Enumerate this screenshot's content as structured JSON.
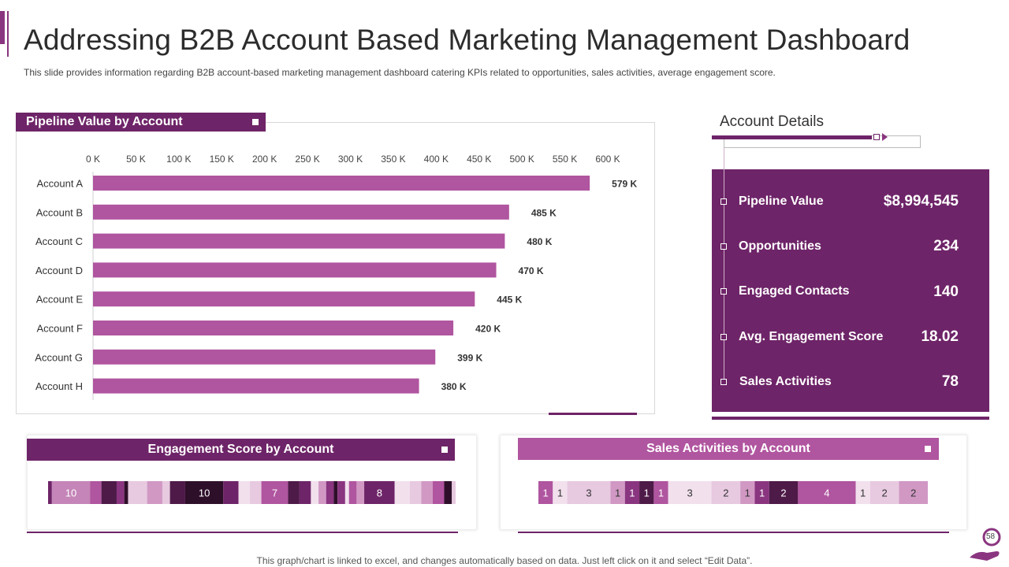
{
  "header": {
    "title": "Addressing B2B Account Based Marketing Management Dashboard",
    "subtitle": "This slide provides  information  regarding  B2B account-based  marketing  management  dashboard  catering  KPIs related  to opportunities,  sales activities,  average   engagement  score."
  },
  "colors": {
    "accent": "#6e2468",
    "bar": "#b0559f",
    "panel": "#6e2468"
  },
  "pipeline_chart": {
    "header": "Pipeline Value by Account"
  },
  "chart_data": [
    {
      "type": "bar",
      "orientation": "horizontal",
      "title": "Pipeline Value by Account",
      "categories": [
        "Account  A",
        "Account  B",
        "Account  C",
        "Account  D",
        "Account  E",
        "Account  F",
        "Account  G",
        "Account  H"
      ],
      "values": [
        579,
        485,
        480,
        470,
        445,
        420,
        399,
        380
      ],
      "value_labels": [
        "579  K",
        "485  K",
        "480  K",
        "470  K",
        "445  K",
        "420  K",
        "399  K",
        "380  K"
      ],
      "ticks": [
        0,
        50,
        100,
        150,
        200,
        250,
        300,
        350,
        400,
        450,
        500,
        550,
        600
      ],
      "tick_labels": [
        "0 K",
        "50 K",
        "100 K",
        "150 K",
        "200 K",
        "250 K",
        "300 K",
        "350 K",
        "400 K",
        "450 K",
        "500 K",
        "550 K",
        "600 K"
      ],
      "xlim": [
        0,
        600
      ],
      "unit": "K",
      "legend": "none"
    },
    {
      "type": "bar",
      "orientation": "stacked-horizontal",
      "title": "Engagement Score by Account",
      "segments": [
        {
          "value": 1,
          "color": "#6e2468",
          "label": ""
        },
        {
          "value": 10,
          "color": "#c585b8",
          "label": "10"
        },
        {
          "value": 3,
          "color": "#b0559f",
          "label": ""
        },
        {
          "value": 4,
          "color": "#4e1a48",
          "label": ""
        },
        {
          "value": 2,
          "color": "#8a3580",
          "label": ""
        },
        {
          "value": 1,
          "color": "#2e0f2a",
          "label": ""
        },
        {
          "value": 5,
          "color": "#e7c9e0",
          "label": ""
        },
        {
          "value": 4,
          "color": "#d198c4",
          "label": ""
        },
        {
          "value": 2,
          "color": "#e7c9e0",
          "label": ""
        },
        {
          "value": 4,
          "color": "#4e1a48",
          "label": ""
        },
        {
          "value": 10,
          "color": "#2e0f2a",
          "label": "10"
        },
        {
          "value": 4,
          "color": "#6e2468",
          "label": ""
        },
        {
          "value": 3,
          "color": "#f2e0ed",
          "label": ""
        },
        {
          "value": 3,
          "color": "#e7c9e0",
          "label": ""
        },
        {
          "value": 7,
          "color": "#b0559f",
          "label": "7"
        },
        {
          "value": 3,
          "color": "#4e1a48",
          "label": ""
        },
        {
          "value": 3,
          "color": "#6e2468",
          "label": ""
        },
        {
          "value": 2,
          "color": "#f2e0ed",
          "label": ""
        },
        {
          "value": 2,
          "color": "#d198c4",
          "label": ""
        },
        {
          "value": 2,
          "color": "#8a3580",
          "label": ""
        },
        {
          "value": 1,
          "color": "#2e0f2a",
          "label": ""
        },
        {
          "value": 2,
          "color": "#8a3580",
          "label": ""
        },
        {
          "value": 1,
          "color": "#f2e0ed",
          "label": ""
        },
        {
          "value": 2,
          "color": "#b0559f",
          "label": ""
        },
        {
          "value": 2,
          "color": "#d198c4",
          "label": ""
        },
        {
          "value": 8,
          "color": "#6e2468",
          "label": "8"
        },
        {
          "value": 4,
          "color": "#f2e0ed",
          "label": ""
        },
        {
          "value": 3,
          "color": "#e7c9e0",
          "label": ""
        },
        {
          "value": 3,
          "color": "#d198c4",
          "label": ""
        },
        {
          "value": 3,
          "color": "#b0559f",
          "label": ""
        },
        {
          "value": 2,
          "color": "#2e0f2a",
          "label": ""
        },
        {
          "value": 1,
          "color": "#e7c9e0",
          "label": ""
        }
      ],
      "legend": "none"
    },
    {
      "type": "bar",
      "orientation": "stacked-horizontal",
      "title": "Sales Activities by Account",
      "segments": [
        {
          "value": 1,
          "color": "#b0559f",
          "label": "1"
        },
        {
          "value": 1,
          "color": "#f2e0ed",
          "label": "1"
        },
        {
          "value": 3,
          "color": "#e7c9e0",
          "label": "3"
        },
        {
          "value": 1,
          "color": "#d198c4",
          "label": "1"
        },
        {
          "value": 1,
          "color": "#8a3580",
          "label": "1"
        },
        {
          "value": 1,
          "color": "#4e1a48",
          "label": "1"
        },
        {
          "value": 1,
          "color": "#b0559f",
          "label": "1"
        },
        {
          "value": 3,
          "color": "#f2e0ed",
          "label": "3"
        },
        {
          "value": 2,
          "color": "#e7c9e0",
          "label": "2"
        },
        {
          "value": 1,
          "color": "#d198c4",
          "label": "1"
        },
        {
          "value": 1,
          "color": "#8a3580",
          "label": "1"
        },
        {
          "value": 2,
          "color": "#4e1a48",
          "label": "2"
        },
        {
          "value": 4,
          "color": "#b0559f",
          "label": "4"
        },
        {
          "value": 1,
          "color": "#f2e0ed",
          "label": "1"
        },
        {
          "value": 2,
          "color": "#e7c9e0",
          "label": "2"
        },
        {
          "value": 2,
          "color": "#d198c4",
          "label": "2"
        }
      ],
      "legend": "none"
    }
  ],
  "account_details": {
    "title": "Account Details",
    "items": [
      {
        "label": "Pipeline Value",
        "value": "$8,994,545"
      },
      {
        "label": "Opportunities",
        "value": "234"
      },
      {
        "label": "Engaged Contacts",
        "value": "140"
      },
      {
        "label": "Avg. Engagement Score",
        "value": "18.02"
      },
      {
        "label": "Sales Activities",
        "value": "78"
      }
    ]
  },
  "engagement": {
    "header": "Engagement Score by Account"
  },
  "sales": {
    "header": "Sales Activities by Account"
  },
  "footer": {
    "note": "This graph/chart is linked to excel,  and changes automatically based on data. Just left click on it and select “Edit Data”.",
    "page_number": "58"
  }
}
